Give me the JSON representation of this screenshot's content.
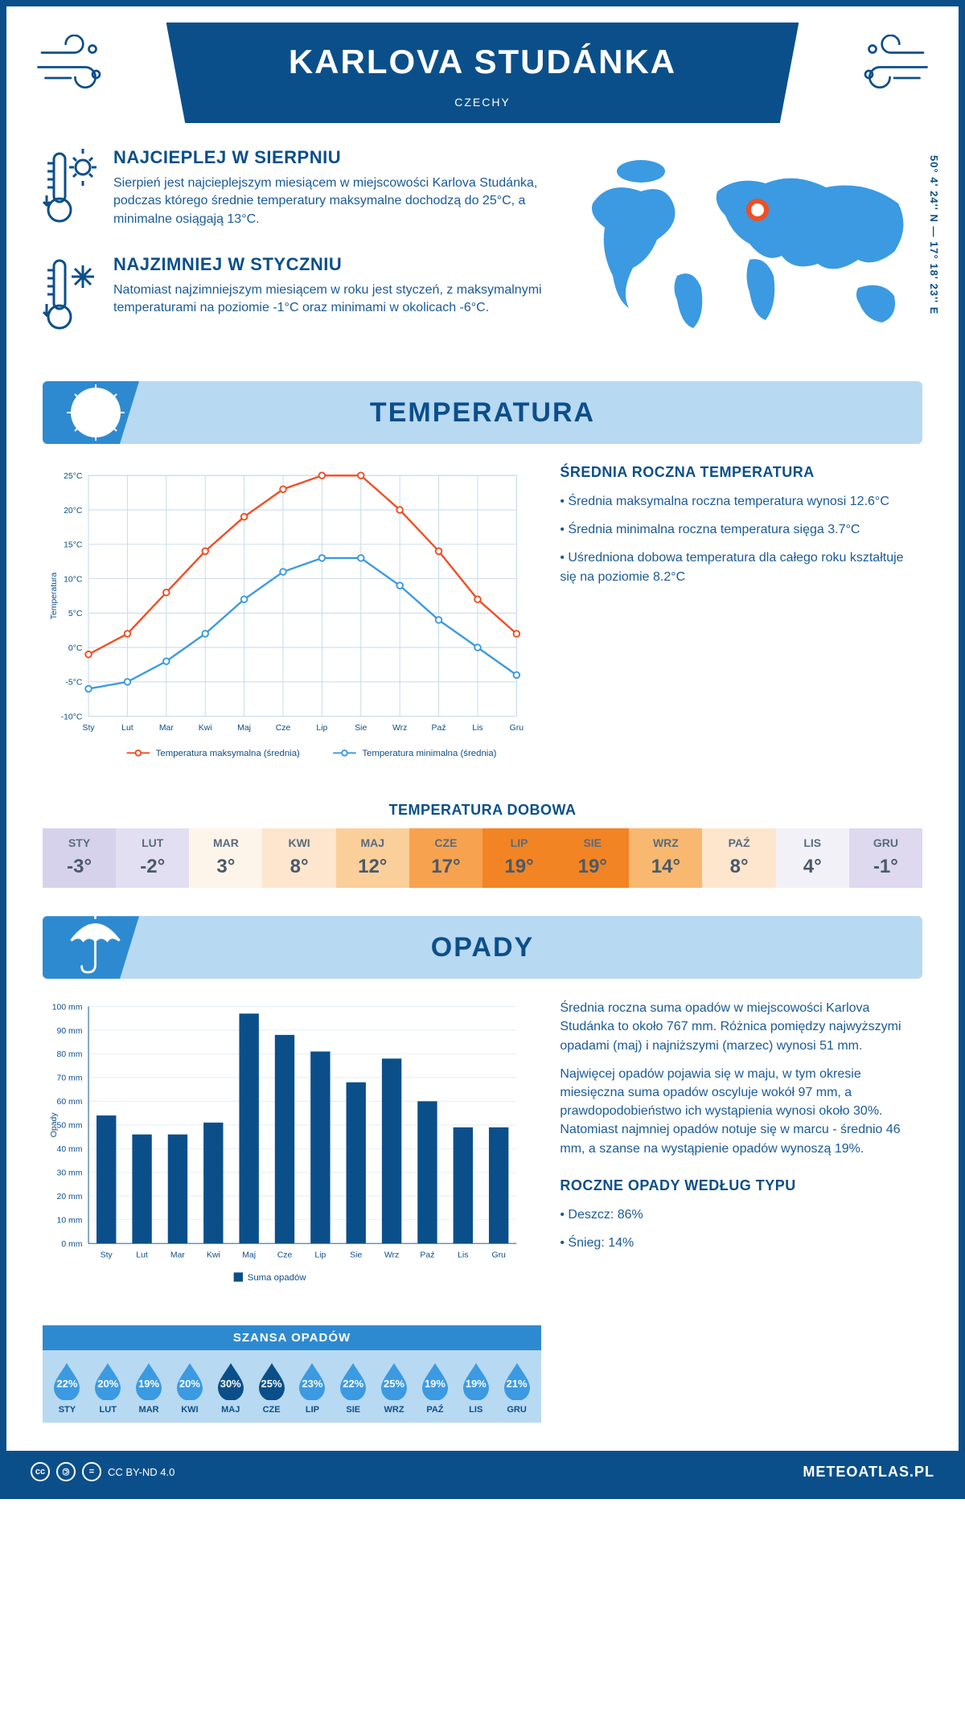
{
  "header": {
    "title": "KARLOVA STUDÁNKA",
    "country": "CZECHY",
    "coords": "50° 4' 24'' N — 17° 18' 23'' E"
  },
  "facts": {
    "warm": {
      "title": "NAJCIEPLEJ W SIERPNIU",
      "text": "Sierpień jest najcieplejszym miesiącem w miejscowości Karlova Studánka, podczas którego średnie temperatury maksymalne dochodzą do 25°C, a minimalne osiągają 13°C."
    },
    "cold": {
      "title": "NAJZIMNIEJ W STYCZNIU",
      "text": "Natomiast najzimniejszym miesiącem w roku jest styczeń, z maksymalnymi temperaturami na poziomie -1°C oraz minimami w okolicach -6°C."
    }
  },
  "temp_section": {
    "heading": "TEMPERATURA",
    "side_title": "ŚREDNIA ROCZNA TEMPERATURA",
    "bullets": [
      "Średnia maksymalna roczna temperatura wynosi 12.6°C",
      "Średnia minimalna roczna temperatura sięga 3.7°C",
      "Uśredniona dobowa temperatura dla całego roku kształtuje się na poziomie 8.2°C"
    ],
    "chart": {
      "months": [
        "Sty",
        "Lut",
        "Mar",
        "Kwi",
        "Maj",
        "Cze",
        "Lip",
        "Sie",
        "Wrz",
        "Paź",
        "Lis",
        "Gru"
      ],
      "max": [
        -1,
        2,
        8,
        14,
        19,
        23,
        25,
        25,
        20,
        14,
        7,
        2
      ],
      "min": [
        -6,
        -5,
        -2,
        2,
        7,
        11,
        13,
        13,
        9,
        4,
        0,
        -4
      ],
      "ylim": [
        -10,
        25
      ],
      "ytick_step": 5,
      "max_color": "#f04e23",
      "min_color": "#3b9ae1",
      "grid_color": "#c5d9ed",
      "ylabel": "Temperatura",
      "legend_max": "Temperatura maksymalna (średnia)",
      "legend_min": "Temperatura minimalna (średnia)"
    },
    "daily": {
      "title": "TEMPERATURA DOBOWA",
      "months": [
        "STY",
        "LUT",
        "MAR",
        "KWI",
        "MAJ",
        "CZE",
        "LIP",
        "SIE",
        "WRZ",
        "PAŹ",
        "LIS",
        "GRU"
      ],
      "values": [
        "-3°",
        "-2°",
        "3°",
        "8°",
        "12°",
        "17°",
        "19°",
        "19°",
        "14°",
        "8°",
        "4°",
        "-1°"
      ],
      "colors": [
        "#d7d2ec",
        "#e3dff2",
        "#fdf4ea",
        "#fde6cd",
        "#fbcf9a",
        "#f7a24f",
        "#f28424",
        "#f28424",
        "#f9b86f",
        "#fde6cd",
        "#f3f1f8",
        "#ded9ef"
      ]
    }
  },
  "precip_section": {
    "heading": "OPADY",
    "para1": "Średnia roczna suma opadów w miejscowości Karlova Studánka to około 767 mm. Różnica pomiędzy najwyższymi opadami (maj) i najniższymi (marzec) wynosi 51 mm.",
    "para2": "Najwięcej opadów pojawia się w maju, w tym okresie miesięczna suma opadów oscyluje wokół 97 mm, a prawdopodobieństwo ich wystąpienia wynosi około 30%. Natomiast najmniej opadów notuje się w marcu - średnio 46 mm, a szanse na wystąpienie opadów wynoszą 19%.",
    "type_title": "ROCZNE OPADY WEDŁUG TYPU",
    "type_rain": "Deszcz: 86%",
    "type_snow": "Śnieg: 14%",
    "chart": {
      "months": [
        "Sty",
        "Lut",
        "Mar",
        "Kwi",
        "Maj",
        "Cze",
        "Lip",
        "Sie",
        "Wrz",
        "Paź",
        "Lis",
        "Gru"
      ],
      "values": [
        54,
        46,
        46,
        51,
        97,
        88,
        81,
        68,
        78,
        60,
        49,
        49
      ],
      "ylim": [
        0,
        100
      ],
      "ytick_step": 10,
      "bar_color": "#0b4f8a",
      "ylabel": "Opady",
      "legend": "Suma opadów"
    },
    "chance": {
      "title": "SZANSA OPADÓW",
      "months": [
        "STY",
        "LUT",
        "MAR",
        "KWI",
        "MAJ",
        "CZE",
        "LIP",
        "SIE",
        "WRZ",
        "PAŹ",
        "LIS",
        "GRU"
      ],
      "values": [
        "22%",
        "20%",
        "19%",
        "20%",
        "30%",
        "25%",
        "23%",
        "22%",
        "25%",
        "19%",
        "19%",
        "21%"
      ],
      "fill": [
        false,
        false,
        false,
        false,
        true,
        true,
        false,
        false,
        false,
        false,
        false,
        false
      ],
      "fill_color": "#0b4f8a",
      "outline_color": "#3b9ae1"
    }
  },
  "footer": {
    "license": "CC BY-ND 4.0",
    "brand": "METEOATLAS.PL"
  }
}
